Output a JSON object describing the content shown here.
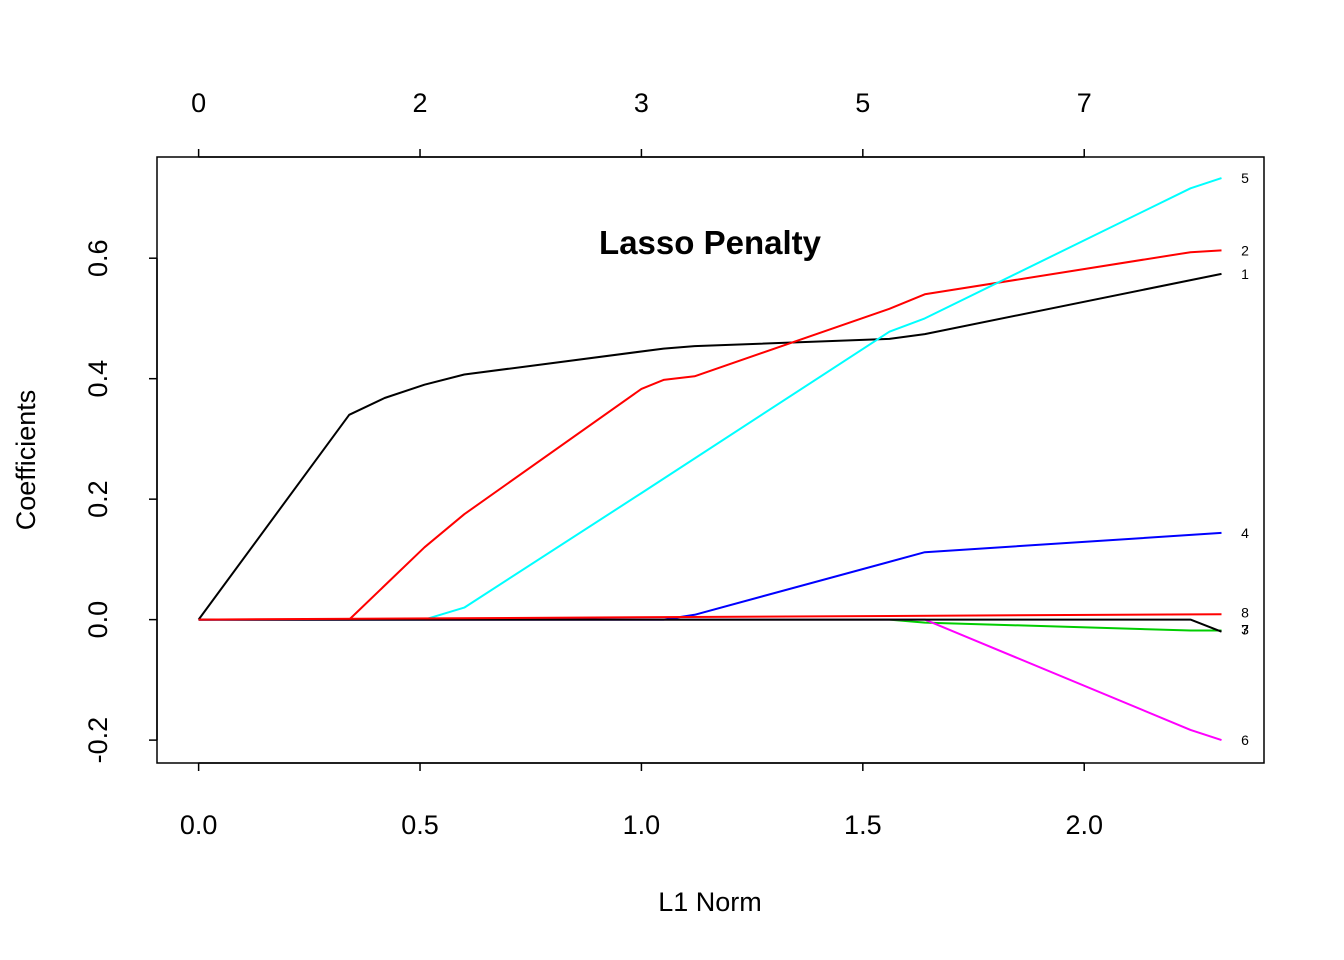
{
  "chart_data": {
    "type": "line",
    "title": "Lasso Penalty",
    "xlabel": "L1 Norm",
    "ylabel": "Coefficients",
    "xlim": [
      -0.094,
      2.406
    ],
    "ylim": [
      -0.238,
      0.768
    ],
    "x_ticks": [
      "0.0",
      "0.5",
      "1.0",
      "1.5",
      "2.0"
    ],
    "y_ticks": [
      "-0.2",
      "0.0",
      "0.2",
      "0.4",
      "0.6"
    ],
    "top_axis": {
      "ticks": [
        {
          "x": 0.0,
          "label": "0"
        },
        {
          "x": 0.5,
          "label": "2"
        },
        {
          "x": 1.0,
          "label": "3"
        },
        {
          "x": 1.5,
          "label": "5"
        },
        {
          "x": 2.0,
          "label": "7"
        }
      ]
    },
    "grid": false,
    "series": [
      {
        "name": "1",
        "color": "#000000",
        "points": [
          [
            0,
            0
          ],
          [
            0.34,
            0.34
          ],
          [
            0.42,
            0.368
          ],
          [
            0.51,
            0.39
          ],
          [
            0.6,
            0.407
          ],
          [
            1.05,
            0.45
          ],
          [
            1.12,
            0.454
          ],
          [
            1.56,
            0.466
          ],
          [
            1.64,
            0.474
          ],
          [
            2.31,
            0.574
          ]
        ]
      },
      {
        "name": "2",
        "color": "#ff0000",
        "points": [
          [
            0,
            0
          ],
          [
            0.34,
            0
          ],
          [
            0.51,
            0.12
          ],
          [
            0.6,
            0.175
          ],
          [
            1.0,
            0.383
          ],
          [
            1.05,
            0.398
          ],
          [
            1.12,
            0.404
          ],
          [
            1.56,
            0.516
          ],
          [
            1.64,
            0.54
          ],
          [
            2.24,
            0.61
          ],
          [
            2.31,
            0.613
          ]
        ]
      },
      {
        "name": "3",
        "color": "#00cd00",
        "points": [
          [
            0,
            0
          ],
          [
            1.56,
            0
          ],
          [
            1.64,
            -0.005
          ],
          [
            2.24,
            -0.018
          ],
          [
            2.31,
            -0.018
          ]
        ]
      },
      {
        "name": "4",
        "color": "#0000ff",
        "points": [
          [
            0,
            0
          ],
          [
            1.05,
            0
          ],
          [
            1.12,
            0.008
          ],
          [
            1.64,
            0.112
          ],
          [
            2.31,
            0.144
          ]
        ]
      },
      {
        "name": "5",
        "color": "#00ffff",
        "points": [
          [
            0,
            0
          ],
          [
            0.51,
            0
          ],
          [
            0.6,
            0.02
          ],
          [
            1.0,
            0.21
          ],
          [
            1.56,
            0.478
          ],
          [
            1.64,
            0.5
          ],
          [
            2.24,
            0.716
          ],
          [
            2.31,
            0.733
          ]
        ]
      },
      {
        "name": "6",
        "color": "#ff00ff",
        "points": [
          [
            0,
            0
          ],
          [
            1.64,
            0
          ],
          [
            2.24,
            -0.183
          ],
          [
            2.31,
            -0.2
          ]
        ]
      },
      {
        "name": "7",
        "color": "#000000",
        "points": [
          [
            0,
            0
          ],
          [
            2.24,
            0
          ],
          [
            2.31,
            -0.02
          ]
        ]
      },
      {
        "name": "8",
        "color": "#ff0000",
        "points": [
          [
            0,
            0
          ],
          [
            2.31,
            0.009
          ]
        ]
      }
    ],
    "end_labels": [
      {
        "text": "5",
        "y": 0.733
      },
      {
        "text": "2",
        "y": 0.613
      },
      {
        "text": "1",
        "y": 0.574
      },
      {
        "text": "4",
        "y": 0.144
      },
      {
        "text": "8",
        "y": 0.012
      },
      {
        "text": "3",
        "y": -0.016
      },
      {
        "text": "7",
        "y": -0.016
      },
      {
        "text": "6",
        "y": -0.2
      }
    ]
  }
}
